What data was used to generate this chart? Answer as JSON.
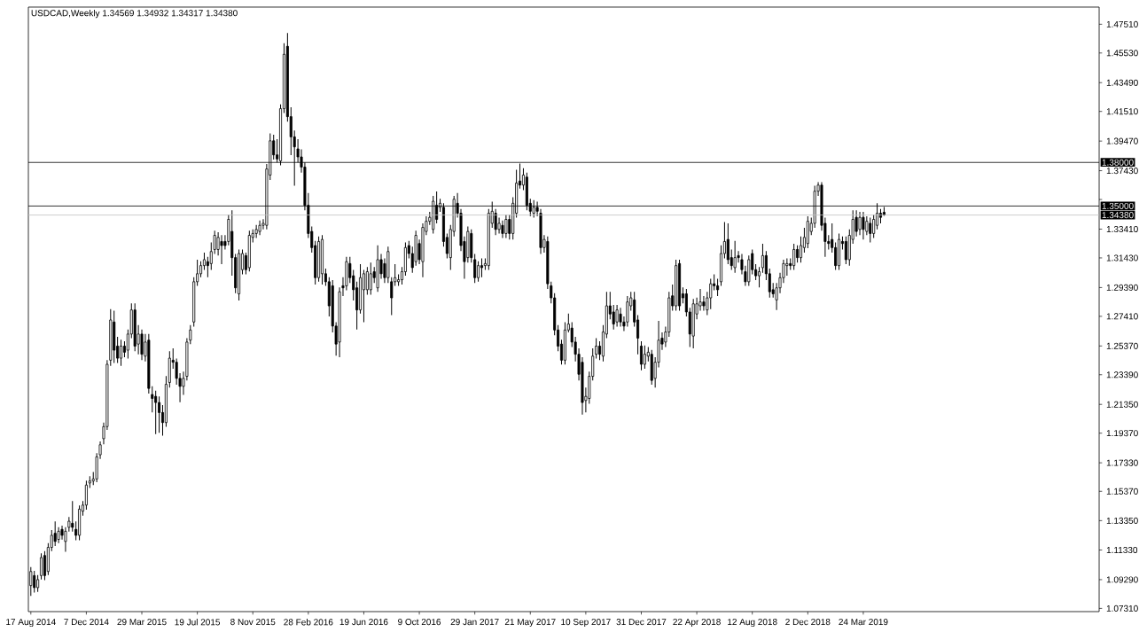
{
  "chart_data": {
    "type": "candlestick",
    "title": "USDCAD,Weekly 1.34569 1.34932 1.34317 1.34380",
    "x": [
      "2014-08-17",
      "2014-08-24",
      "2014-08-31",
      "2014-09-07",
      "2014-09-14",
      "2014-09-21",
      "2014-09-28",
      "2014-10-05",
      "2014-10-12",
      "2014-10-19",
      "2014-10-26",
      "2014-11-02",
      "2014-11-09",
      "2014-11-16",
      "2014-11-23",
      "2014-11-30",
      "2014-12-07",
      "2014-12-14",
      "2014-12-21",
      "2014-12-28",
      "2015-01-04",
      "2015-01-11",
      "2015-01-18",
      "2015-01-25",
      "2015-02-01",
      "2015-02-08",
      "2015-02-15",
      "2015-02-22",
      "2015-03-01",
      "2015-03-08",
      "2015-03-15",
      "2015-03-22",
      "2015-03-29",
      "2015-04-05",
      "2015-04-12",
      "2015-04-19",
      "2015-04-26",
      "2015-05-03",
      "2015-05-10",
      "2015-05-17",
      "2015-05-24",
      "2015-05-31",
      "2015-06-07",
      "2015-06-14",
      "2015-06-21",
      "2015-06-28",
      "2015-07-05",
      "2015-07-12",
      "2015-07-19",
      "2015-07-26",
      "2015-08-02",
      "2015-08-09",
      "2015-08-16",
      "2015-08-23",
      "2015-08-30",
      "2015-09-06",
      "2015-09-13",
      "2015-09-20",
      "2015-09-27",
      "2015-10-04",
      "2015-10-11",
      "2015-10-18",
      "2015-10-25",
      "2015-11-01",
      "2015-11-08",
      "2015-11-15",
      "2015-11-22",
      "2015-11-29",
      "2015-12-06",
      "2015-12-13",
      "2015-12-20",
      "2015-12-27",
      "2016-01-03",
      "2016-01-10",
      "2016-01-17",
      "2016-01-24",
      "2016-01-31",
      "2016-02-07",
      "2016-02-14",
      "2016-02-21",
      "2016-02-28",
      "2016-03-06",
      "2016-03-13",
      "2016-03-20",
      "2016-03-27",
      "2016-04-03",
      "2016-04-10",
      "2016-04-17",
      "2016-04-24",
      "2016-05-01",
      "2016-05-08",
      "2016-05-15",
      "2016-05-22",
      "2016-05-29",
      "2016-06-05",
      "2016-06-12",
      "2016-06-19",
      "2016-06-26",
      "2016-07-03",
      "2016-07-10",
      "2016-07-17",
      "2016-07-24",
      "2016-07-31",
      "2016-08-07",
      "2016-08-14",
      "2016-08-21",
      "2016-08-28",
      "2016-09-04",
      "2016-09-11",
      "2016-09-18",
      "2016-09-25",
      "2016-10-02",
      "2016-10-09",
      "2016-10-16",
      "2016-10-23",
      "2016-10-30",
      "2016-11-06",
      "2016-11-13",
      "2016-11-20",
      "2016-11-27",
      "2016-12-04",
      "2016-12-11",
      "2016-12-18",
      "2016-12-25",
      "2017-01-01",
      "2017-01-08",
      "2017-01-15",
      "2017-01-22",
      "2017-01-29",
      "2017-02-05",
      "2017-02-12",
      "2017-02-19",
      "2017-02-26",
      "2017-03-05",
      "2017-03-12",
      "2017-03-19",
      "2017-03-26",
      "2017-04-02",
      "2017-04-09",
      "2017-04-16",
      "2017-04-23",
      "2017-04-30",
      "2017-05-07",
      "2017-05-14",
      "2017-05-21",
      "2017-05-28",
      "2017-06-04",
      "2017-06-11",
      "2017-06-18",
      "2017-06-25",
      "2017-07-02",
      "2017-07-09",
      "2017-07-16",
      "2017-07-23",
      "2017-07-30",
      "2017-08-06",
      "2017-08-13",
      "2017-08-20",
      "2017-08-27",
      "2017-09-03",
      "2017-09-10",
      "2017-09-17",
      "2017-09-24",
      "2017-10-01",
      "2017-10-08",
      "2017-10-15",
      "2017-10-22",
      "2017-10-29",
      "2017-11-05",
      "2017-11-12",
      "2017-11-19",
      "2017-11-26",
      "2017-12-03",
      "2017-12-10",
      "2017-12-17",
      "2017-12-24",
      "2017-12-31",
      "2018-01-07",
      "2018-01-14",
      "2018-01-21",
      "2018-01-28",
      "2018-02-04",
      "2018-02-11",
      "2018-02-18",
      "2018-02-25",
      "2018-03-04",
      "2018-03-11",
      "2018-03-18",
      "2018-03-25",
      "2018-04-01",
      "2018-04-08",
      "2018-04-15",
      "2018-04-22",
      "2018-04-29",
      "2018-05-06",
      "2018-05-13",
      "2018-05-20",
      "2018-05-27",
      "2018-06-03",
      "2018-06-10",
      "2018-06-17",
      "2018-06-24",
      "2018-07-01",
      "2018-07-08",
      "2018-07-15",
      "2018-07-22",
      "2018-07-29",
      "2018-08-05",
      "2018-08-12",
      "2018-08-19",
      "2018-08-26",
      "2018-09-02",
      "2018-09-09",
      "2018-09-16",
      "2018-09-23",
      "2018-09-30",
      "2018-10-07",
      "2018-10-14",
      "2018-10-21",
      "2018-10-28",
      "2018-11-04",
      "2018-11-11",
      "2018-11-18",
      "2018-11-25",
      "2018-12-02",
      "2018-12-09",
      "2018-12-16",
      "2018-12-23",
      "2018-12-30",
      "2019-01-06",
      "2019-01-13",
      "2019-01-20",
      "2019-01-27",
      "2019-02-03",
      "2019-02-10",
      "2019-02-17",
      "2019-02-24",
      "2019-03-03",
      "2019-03-10",
      "2019-03-17",
      "2019-03-24",
      "2019-03-31",
      "2019-04-07",
      "2019-04-14",
      "2019-04-21",
      "2019-04-28",
      "2019-05-05"
    ],
    "ohlc": [
      [
        1.0888,
        1.1015,
        1.0818,
        1.0985
      ],
      [
        1.0957,
        1.099,
        1.084,
        1.0874
      ],
      [
        1.0874,
        1.096,
        1.0845,
        1.0929
      ],
      [
        1.0957,
        1.111,
        1.093,
        1.1081
      ],
      [
        1.1095,
        1.1125,
        1.0925,
        1.0957
      ],
      [
        1.0985,
        1.118,
        1.096,
        1.1151
      ],
      [
        1.1151,
        1.127,
        1.1125,
        1.1234
      ],
      [
        1.1248,
        1.133,
        1.116,
        1.1192
      ],
      [
        1.1206,
        1.129,
        1.118,
        1.1262
      ],
      [
        1.1275,
        1.13,
        1.1205,
        1.1234
      ],
      [
        1.1192,
        1.129,
        1.112,
        1.1262
      ],
      [
        1.1289,
        1.136,
        1.126,
        1.1331
      ],
      [
        1.1317,
        1.147,
        1.126,
        1.1289
      ],
      [
        1.1275,
        1.133,
        1.12,
        1.1234
      ],
      [
        1.1234,
        1.144,
        1.12,
        1.1414
      ],
      [
        1.14,
        1.147,
        1.137,
        1.1442
      ],
      [
        1.1442,
        1.161,
        1.141,
        1.158
      ],
      [
        1.1594,
        1.164,
        1.156,
        1.1608
      ],
      [
        1.1608,
        1.167,
        1.158,
        1.1622
      ],
      [
        1.1622,
        1.18,
        1.16,
        1.1774
      ],
      [
        1.1788,
        1.188,
        1.176,
        1.1857
      ],
      [
        1.1899,
        1.201,
        1.186,
        1.1982
      ],
      [
        1.1982,
        1.244,
        1.196,
        1.2411
      ],
      [
        1.2439,
        1.279,
        1.24,
        1.2716
      ],
      [
        1.2702,
        1.278,
        1.242,
        1.2508
      ],
      [
        1.2536,
        1.26,
        1.242,
        1.2453
      ],
      [
        1.2453,
        1.258,
        1.24,
        1.2536
      ],
      [
        1.2536,
        1.257,
        1.246,
        1.2494
      ],
      [
        1.2508,
        1.265,
        1.245,
        1.2619
      ],
      [
        1.2619,
        1.283,
        1.259,
        1.2785
      ],
      [
        1.2785,
        1.283,
        1.25,
        1.2536
      ],
      [
        1.255,
        1.268,
        1.248,
        1.2619
      ],
      [
        1.2619,
        1.265,
        1.244,
        1.248
      ],
      [
        1.2467,
        1.262,
        1.243,
        1.2564
      ],
      [
        1.2577,
        1.262,
        1.221,
        1.2245
      ],
      [
        1.2203,
        1.226,
        1.208,
        1.2176
      ],
      [
        1.219,
        1.223,
        1.193,
        1.2148
      ],
      [
        1.2148,
        1.219,
        1.194,
        1.2079
      ],
      [
        1.2079,
        1.213,
        1.192,
        1.201
      ],
      [
        1.201,
        1.233,
        1.198,
        1.2273
      ],
      [
        1.2286,
        1.25,
        1.225,
        1.2453
      ],
      [
        1.2439,
        1.252,
        1.238,
        1.2425
      ],
      [
        1.2425,
        1.245,
        1.227,
        1.2314
      ],
      [
        1.2314,
        1.235,
        1.215,
        1.2259
      ],
      [
        1.2259,
        1.236,
        1.22,
        1.2314
      ],
      [
        1.2328,
        1.259,
        1.23,
        1.2564
      ],
      [
        1.2577,
        1.268,
        1.255,
        1.2647
      ],
      [
        1.2702,
        1.301,
        1.267,
        1.2979
      ],
      [
        1.2979,
        1.313,
        1.295,
        1.3034
      ],
      [
        1.3034,
        1.312,
        1.301,
        1.309
      ],
      [
        1.309,
        1.318,
        1.306,
        1.3131
      ],
      [
        1.3117,
        1.315,
        1.301,
        1.309
      ],
      [
        1.3104,
        1.325,
        1.306,
        1.3187
      ],
      [
        1.3201,
        1.333,
        1.317,
        1.3298
      ],
      [
        1.3201,
        1.332,
        1.316,
        1.3284
      ],
      [
        1.3256,
        1.33,
        1.31,
        1.3228
      ],
      [
        1.3256,
        1.33,
        1.32,
        1.3228
      ],
      [
        1.3256,
        1.344,
        1.323,
        1.3408
      ],
      [
        1.3325,
        1.347,
        1.302,
        1.3145
      ],
      [
        1.3145,
        1.317,
        1.29,
        1.2937
      ],
      [
        1.2896,
        1.32,
        1.285,
        1.3173
      ],
      [
        1.3062,
        1.32,
        1.303,
        1.3173
      ],
      [
        1.3159,
        1.318,
        1.303,
        1.3062
      ],
      [
        1.3076,
        1.333,
        1.305,
        1.3298
      ],
      [
        1.3284,
        1.334,
        1.325,
        1.3311
      ],
      [
        1.3311,
        1.337,
        1.328,
        1.3339
      ],
      [
        1.3325,
        1.34,
        1.33,
        1.3367
      ],
      [
        1.3367,
        1.341,
        1.334,
        1.3381
      ],
      [
        1.3367,
        1.379,
        1.334,
        1.3755
      ],
      [
        1.3713,
        1.4,
        1.368,
        1.3949
      ],
      [
        1.3949,
        1.399,
        1.382,
        1.3852
      ],
      [
        1.3852,
        1.396,
        1.38,
        1.3824
      ],
      [
        1.381,
        1.42,
        1.378,
        1.417
      ],
      [
        1.417,
        1.462,
        1.414,
        1.4544
      ],
      [
        1.4599,
        1.469,
        1.408,
        1.4115
      ],
      [
        1.4115,
        1.418,
        1.385,
        1.3976
      ],
      [
        1.3976,
        1.402,
        1.364,
        1.3907
      ],
      [
        1.3893,
        1.396,
        1.38,
        1.3838
      ],
      [
        1.3838,
        1.389,
        1.373,
        1.3768
      ],
      [
        1.3768,
        1.38,
        1.347,
        1.3505
      ],
      [
        1.3505,
        1.359,
        1.328,
        1.3311
      ],
      [
        1.3325,
        1.336,
        1.318,
        1.3214
      ],
      [
        1.3228,
        1.326,
        1.296,
        1.3007
      ],
      [
        1.3007,
        1.329,
        1.298,
        1.3256
      ],
      [
        1.3034,
        1.33,
        1.296,
        1.327
      ],
      [
        1.3034,
        1.307,
        1.295,
        1.2979
      ],
      [
        1.2979,
        1.301,
        1.274,
        1.2813
      ],
      [
        1.2951,
        1.299,
        1.263,
        1.2674
      ],
      [
        1.2674,
        1.27,
        1.247,
        1.255
      ],
      [
        1.2564,
        1.294,
        1.246,
        1.291
      ],
      [
        1.2951,
        1.301,
        1.288,
        1.2937
      ],
      [
        1.2951,
        1.315,
        1.292,
        1.3117
      ],
      [
        1.3104,
        1.315,
        1.297,
        1.3007
      ],
      [
        1.302,
        1.306,
        1.285,
        1.2924
      ],
      [
        1.2937,
        1.298,
        1.265,
        1.2785
      ],
      [
        1.2785,
        1.31,
        1.276,
        1.3007
      ],
      [
        1.2924,
        1.306,
        1.27,
        1.3034
      ],
      [
        1.2924,
        1.308,
        1.289,
        1.3048
      ],
      [
        1.2924,
        1.311,
        1.289,
        1.3034
      ],
      [
        1.3048,
        1.308,
        1.297,
        1.3007
      ],
      [
        1.2937,
        1.323,
        1.291,
        1.3131
      ],
      [
        1.3131,
        1.317,
        1.3,
        1.3034
      ],
      [
        1.3104,
        1.314,
        1.297,
        1.3007
      ],
      [
        1.3007,
        1.322,
        1.297,
        1.3187
      ],
      [
        1.2979,
        1.301,
        1.275,
        1.2868
      ],
      [
        1.2979,
        1.31,
        1.295,
        1.3007
      ],
      [
        1.2979,
        1.303,
        1.295,
        1.2993
      ],
      [
        1.2993,
        1.308,
        1.296,
        1.3048
      ],
      [
        1.3048,
        1.325,
        1.302,
        1.3214
      ],
      [
        1.3228,
        1.326,
        1.314,
        1.3173
      ],
      [
        1.3173,
        1.322,
        1.304,
        1.3076
      ],
      [
        1.3117,
        1.333,
        1.309,
        1.3298
      ],
      [
        1.3242,
        1.327,
        1.31,
        1.3131
      ],
      [
        1.3117,
        1.338,
        1.301,
        1.3353
      ],
      [
        1.3325,
        1.343,
        1.33,
        1.3395
      ],
      [
        1.3395,
        1.346,
        1.337,
        1.3422
      ],
      [
        1.3339,
        1.357,
        1.331,
        1.3533
      ],
      [
        1.3505,
        1.36,
        1.338,
        1.3408
      ],
      [
        1.3491,
        1.355,
        1.346,
        1.3519
      ],
      [
        1.3491,
        1.352,
        1.322,
        1.3256
      ],
      [
        1.3284,
        1.331,
        1.314,
        1.3173
      ],
      [
        1.3145,
        1.337,
        1.306,
        1.3339
      ],
      [
        1.3325,
        1.357,
        1.329,
        1.3547
      ],
      [
        1.3519,
        1.359,
        1.342,
        1.345
      ],
      [
        1.345,
        1.348,
        1.319,
        1.3228
      ],
      [
        1.3256,
        1.329,
        1.3,
        1.3117
      ],
      [
        1.3145,
        1.336,
        1.311,
        1.3325
      ],
      [
        1.3311,
        1.334,
        1.311,
        1.3145
      ],
      [
        1.3131,
        1.317,
        1.297,
        1.3007
      ],
      [
        1.3007,
        1.312,
        1.298,
        1.309
      ],
      [
        1.309,
        1.314,
        1.301,
        1.3076
      ],
      [
        1.309,
        1.314,
        1.306,
        1.3104
      ],
      [
        1.309,
        1.348,
        1.306,
        1.345
      ],
      [
        1.3381,
        1.353,
        1.335,
        1.3464
      ],
      [
        1.345,
        1.348,
        1.33,
        1.3339
      ],
      [
        1.3339,
        1.342,
        1.331,
        1.3381
      ],
      [
        1.3367,
        1.34,
        1.328,
        1.3311
      ],
      [
        1.3311,
        1.344,
        1.328,
        1.3408
      ],
      [
        1.3408,
        1.344,
        1.327,
        1.3311
      ],
      [
        1.3311,
        1.356,
        1.327,
        1.3519
      ],
      [
        1.345,
        1.375,
        1.342,
        1.3658
      ],
      [
        1.3672,
        1.3793,
        1.362,
        1.3644
      ],
      [
        1.3644,
        1.376,
        1.361,
        1.3713
      ],
      [
        1.3699,
        1.373,
        1.347,
        1.3505
      ],
      [
        1.3519,
        1.355,
        1.343,
        1.3464
      ],
      [
        1.345,
        1.354,
        1.342,
        1.3491
      ],
      [
        1.3491,
        1.353,
        1.343,
        1.3464
      ],
      [
        1.345,
        1.348,
        1.317,
        1.3214
      ],
      [
        1.3214,
        1.33,
        1.318,
        1.327
      ],
      [
        1.3256,
        1.329,
        1.293,
        1.2965
      ],
      [
        1.2951,
        1.298,
        1.283,
        1.2868
      ],
      [
        1.2868,
        1.29,
        1.261,
        1.2647
      ],
      [
        1.2647,
        1.268,
        1.25,
        1.2536
      ],
      [
        1.255,
        1.258,
        1.241,
        1.2439
      ],
      [
        1.2439,
        1.27,
        1.241,
        1.2647
      ],
      [
        1.2647,
        1.276,
        1.263,
        1.2688
      ],
      [
        1.266,
        1.27,
        1.253,
        1.2564
      ],
      [
        1.2564,
        1.26,
        1.243,
        1.248
      ],
      [
        1.248,
        1.252,
        1.23,
        1.2342
      ],
      [
        1.2425,
        1.246,
        1.2065,
        1.2148
      ],
      [
        1.2162,
        1.225,
        1.208,
        1.219
      ],
      [
        1.2176,
        1.236,
        1.214,
        1.2328
      ],
      [
        1.2328,
        1.252,
        1.23,
        1.2467
      ],
      [
        1.248,
        1.259,
        1.245,
        1.2536
      ],
      [
        1.2536,
        1.257,
        1.244,
        1.248
      ],
      [
        1.2467,
        1.268,
        1.243,
        1.2633
      ],
      [
        1.2619,
        1.291,
        1.259,
        1.2813
      ],
      [
        1.2813,
        1.291,
        1.272,
        1.2757
      ],
      [
        1.2771,
        1.282,
        1.265,
        1.2688
      ],
      [
        1.2702,
        1.282,
        1.267,
        1.2785
      ],
      [
        1.2757,
        1.28,
        1.267,
        1.2702
      ],
      [
        1.2702,
        1.274,
        1.264,
        1.2674
      ],
      [
        1.2702,
        1.288,
        1.267,
        1.284
      ],
      [
        1.2813,
        1.291,
        1.278,
        1.2868
      ],
      [
        1.2854,
        1.291,
        1.267,
        1.2702
      ],
      [
        1.2716,
        1.275,
        1.248,
        1.2591
      ],
      [
        1.2536,
        1.257,
        1.237,
        1.2411
      ],
      [
        1.2411,
        1.254,
        1.238,
        1.248
      ],
      [
        1.2467,
        1.253,
        1.243,
        1.2494
      ],
      [
        1.248,
        1.251,
        1.227,
        1.23
      ],
      [
        1.2314,
        1.246,
        1.225,
        1.2425
      ],
      [
        1.2425,
        1.271,
        1.239,
        1.2577
      ],
      [
        1.2591,
        1.263,
        1.251,
        1.255
      ],
      [
        1.2564,
        1.267,
        1.253,
        1.2633
      ],
      [
        1.2633,
        1.291,
        1.26,
        1.2868
      ],
      [
        1.2882,
        1.296,
        1.278,
        1.2813
      ],
      [
        1.2813,
        1.313,
        1.278,
        1.309
      ],
      [
        1.3104,
        1.313,
        1.278,
        1.2813
      ],
      [
        1.2896,
        1.294,
        1.283,
        1.2868
      ],
      [
        1.2896,
        1.293,
        1.274,
        1.2771
      ],
      [
        1.2771,
        1.28,
        1.253,
        1.2619
      ],
      [
        1.2605,
        1.286,
        1.252,
        1.2827
      ],
      [
        1.2757,
        1.287,
        1.272,
        1.2827
      ],
      [
        1.2813,
        1.293,
        1.278,
        1.284
      ],
      [
        1.284,
        1.288,
        1.278,
        1.2813
      ],
      [
        1.2785,
        1.291,
        1.275,
        1.2868
      ],
      [
        1.2868,
        1.3,
        1.279,
        1.2965
      ],
      [
        1.2965,
        1.303,
        1.292,
        1.2951
      ],
      [
        1.2951,
        1.3,
        1.288,
        1.2924
      ],
      [
        1.2979,
        1.323,
        1.295,
        1.3173
      ],
      [
        1.3173,
        1.339,
        1.314,
        1.3256
      ],
      [
        1.327,
        1.338,
        1.31,
        1.3131
      ],
      [
        1.3145,
        1.32,
        1.306,
        1.309
      ],
      [
        1.3076,
        1.326,
        1.304,
        1.3145
      ],
      [
        1.3159,
        1.319,
        1.311,
        1.3145
      ],
      [
        1.3131,
        1.317,
        1.303,
        1.3062
      ],
      [
        1.3048,
        1.309,
        1.295,
        1.2979
      ],
      [
        1.2979,
        1.316,
        1.295,
        1.3131
      ],
      [
        1.3173,
        1.32,
        1.303,
        1.3062
      ],
      [
        1.3062,
        1.31,
        1.299,
        1.302
      ],
      [
        1.302,
        1.308,
        1.294,
        1.3048
      ],
      [
        1.3076,
        1.324,
        1.304,
        1.3159
      ],
      [
        1.3159,
        1.319,
        1.299,
        1.3034
      ],
      [
        1.3034,
        1.307,
        1.287,
        1.291
      ],
      [
        1.2924,
        1.297,
        1.287,
        1.2896
      ],
      [
        1.2854,
        1.297,
        1.2785,
        1.2937
      ],
      [
        1.2937,
        1.304,
        1.29,
        1.3007
      ],
      [
        1.3007,
        1.313,
        1.297,
        1.3104
      ],
      [
        1.309,
        1.314,
        1.302,
        1.3104
      ],
      [
        1.3104,
        1.314,
        1.306,
        1.309
      ],
      [
        1.309,
        1.324,
        1.306,
        1.3201
      ],
      [
        1.3201,
        1.323,
        1.311,
        1.3145
      ],
      [
        1.3145,
        1.329,
        1.311,
        1.3228
      ],
      [
        1.3214,
        1.335,
        1.318,
        1.3284
      ],
      [
        1.3242,
        1.343,
        1.321,
        1.3395
      ],
      [
        1.3325,
        1.342,
        1.33,
        1.3381
      ],
      [
        1.3381,
        1.364,
        1.335,
        1.3602
      ],
      [
        1.3602,
        1.3665,
        1.357,
        1.3644
      ],
      [
        1.3644,
        1.3665,
        1.333,
        1.3367
      ],
      [
        1.3381,
        1.342,
        1.315,
        1.3256
      ],
      [
        1.3256,
        1.33,
        1.32,
        1.3242
      ],
      [
        1.327,
        1.338,
        1.318,
        1.3214
      ],
      [
        1.3214,
        1.325,
        1.306,
        1.309
      ],
      [
        1.309,
        1.331,
        1.306,
        1.327
      ],
      [
        1.3256,
        1.329,
        1.32,
        1.3242
      ],
      [
        1.3256,
        1.329,
        1.31,
        1.3131
      ],
      [
        1.3131,
        1.334,
        1.309,
        1.3298
      ],
      [
        1.327,
        1.347,
        1.324,
        1.3408
      ],
      [
        1.3422,
        1.347,
        1.329,
        1.3325
      ],
      [
        1.3339,
        1.346,
        1.33,
        1.3422
      ],
      [
        1.3422,
        1.346,
        1.327,
        1.3339
      ],
      [
        1.3325,
        1.343,
        1.33,
        1.3395
      ],
      [
        1.3381,
        1.342,
        1.325,
        1.3311
      ],
      [
        1.3311,
        1.344,
        1.328,
        1.3408
      ],
      [
        1.3367,
        1.352,
        1.334,
        1.345
      ],
      [
        1.345,
        1.348,
        1.338,
        1.3422
      ],
      [
        1.34569,
        1.34932,
        1.34317,
        1.3438
      ]
    ],
    "xlim": [
      "2014-08-12",
      "2020-07-12"
    ],
    "ylim": [
      1.0709,
      1.4869
    ],
    "xticks": [
      {
        "value": "2014-08-17",
        "label": "17 Aug 2014"
      },
      {
        "value": "2014-12-07",
        "label": "7 Dec 2014"
      },
      {
        "value": "2015-03-29",
        "label": "29 Mar 2015"
      },
      {
        "value": "2015-07-19",
        "label": "19 Jul 2015"
      },
      {
        "value": "2015-11-08",
        "label": "8 Nov 2015"
      },
      {
        "value": "2016-02-28",
        "label": "28 Feb 2016"
      },
      {
        "value": "2016-06-19",
        "label": "19 Jun 2016"
      },
      {
        "value": "2016-10-09",
        "label": "9 Oct 2016"
      },
      {
        "value": "2017-01-29",
        "label": "29 Jan 2017"
      },
      {
        "value": "2017-05-21",
        "label": "21 May 2017"
      },
      {
        "value": "2017-09-10",
        "label": "10 Sep 2017"
      },
      {
        "value": "2017-12-31",
        "label": "31 Dec 2017"
      },
      {
        "value": "2018-04-22",
        "label": "22 Apr 2018"
      },
      {
        "value": "2018-08-12",
        "label": "12 Aug 2018"
      },
      {
        "value": "2018-12-02",
        "label": "2 Dec 2018"
      },
      {
        "value": "2019-03-24",
        "label": "24 Mar 2019"
      }
    ],
    "yticks": [
      {
        "value": 1.0731,
        "label": "1.07310"
      },
      {
        "value": 1.0929,
        "label": "1.09290"
      },
      {
        "value": 1.1133,
        "label": "1.11330"
      },
      {
        "value": 1.1335,
        "label": "1.13350"
      },
      {
        "value": 1.1537,
        "label": "1.15370"
      },
      {
        "value": 1.1733,
        "label": "1.17330"
      },
      {
        "value": 1.1937,
        "label": "1.19370"
      },
      {
        "value": 1.2135,
        "label": "1.21350"
      },
      {
        "value": 1.2339,
        "label": "1.23390"
      },
      {
        "value": 1.2537,
        "label": "1.25370"
      },
      {
        "value": 1.2741,
        "label": "1.27410"
      },
      {
        "value": 1.2939,
        "label": "1.29390"
      },
      {
        "value": 1.3143,
        "label": "1.31430"
      },
      {
        "value": 1.3341,
        "label": "1.33410"
      },
      {
        "value": 1.3545,
        "label": null
      },
      {
        "value": 1.3743,
        "label": "1.37430"
      },
      {
        "value": 1.3947,
        "label": "1.39470"
      },
      {
        "value": 1.4151,
        "label": "1.41510"
      },
      {
        "value": 1.4349,
        "label": "1.43490"
      },
      {
        "value": 1.4553,
        "label": "1.45530"
      },
      {
        "value": 1.4751,
        "label": "1.47510"
      }
    ],
    "ref_lines": [
      {
        "axis": "y",
        "value": 1.38,
        "label": "1.38000",
        "color": "#000000"
      },
      {
        "axis": "y",
        "value": 1.35,
        "label": "1.35000",
        "color": "#000000"
      },
      {
        "axis": "y",
        "value": 1.3438,
        "label": "1.34380",
        "color": "#c0c0c0"
      }
    ]
  }
}
